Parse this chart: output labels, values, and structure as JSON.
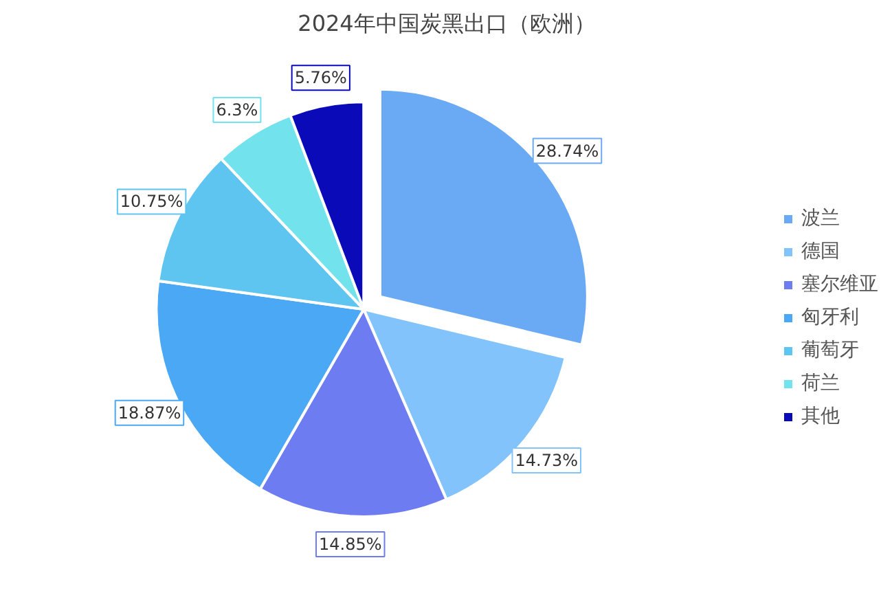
{
  "chart_data": {
    "type": "pie",
    "title": "2024年中国炭黑出口（欧洲）",
    "categories": [
      "波兰",
      "德国",
      "塞尔维亚",
      "匈牙利",
      "葡萄牙",
      "荷兰",
      "其他"
    ],
    "values": [
      28.74,
      14.73,
      14.85,
      18.87,
      10.75,
      6.3,
      5.76
    ],
    "colors": [
      "#6aaaf5",
      "#82c3fb",
      "#6e7cf2",
      "#4aa8f5",
      "#5ec4f0",
      "#72e2ec",
      "#0a0ab8"
    ],
    "value_labels": [
      "28.74%",
      "14.73%",
      "14.85%",
      "18.87%",
      "10.75%",
      "6.3%",
      "5.76%"
    ],
    "legend": "right"
  }
}
